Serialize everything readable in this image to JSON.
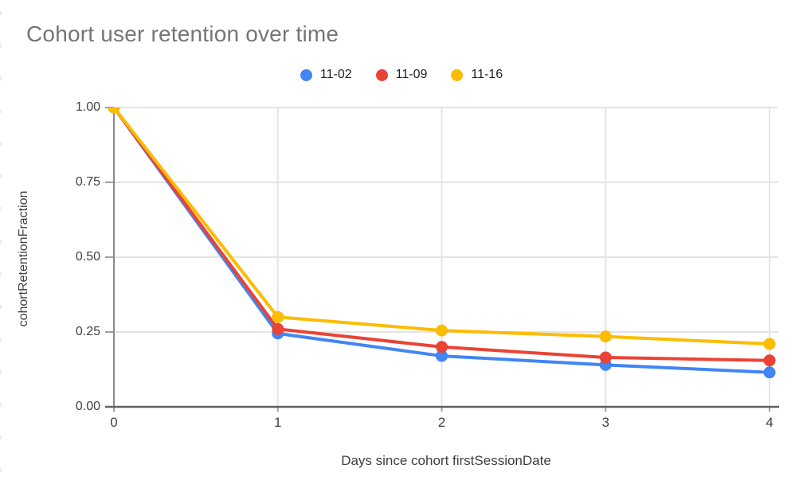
{
  "chart_data": {
    "type": "line",
    "title": "Cohort user retention over time",
    "xlabel": "Days since cohort firstSessionDate",
    "ylabel": "cohortRetentionFraction",
    "x": [
      0,
      1,
      2,
      3,
      4
    ],
    "series": [
      {
        "name": "11-02",
        "color": "#4285f4",
        "values": [
          1.0,
          0.245,
          0.17,
          0.14,
          0.115
        ]
      },
      {
        "name": "11-09",
        "color": "#ea4335",
        "values": [
          1.0,
          0.26,
          0.2,
          0.165,
          0.155
        ]
      },
      {
        "name": "11-16",
        "color": "#fbbc04",
        "values": [
          1.0,
          0.3,
          0.255,
          0.235,
          0.21
        ]
      }
    ],
    "xlim": [
      0,
      4
    ],
    "ylim": [
      0,
      1
    ],
    "xticks": [
      0,
      1,
      2,
      3,
      4
    ],
    "xtick_labels": [
      "0",
      "1",
      "2",
      "3",
      "4"
    ],
    "ytick_labels": [
      "1.00",
      "0.75",
      "0.50",
      "0.25",
      "0.00"
    ],
    "grid": true,
    "legend_position": "top",
    "style": {
      "gridline_color": "#e4e4e4",
      "baseline_color": "#616161",
      "axis_line_color": "#8a8a8a",
      "tick_color": "#9e9e9e",
      "tick_label_color": "#424242",
      "axis_title_color": "#3c4043",
      "title_color": "#757575",
      "legend_label_color": "#202124",
      "background": "#ffffff"
    }
  }
}
